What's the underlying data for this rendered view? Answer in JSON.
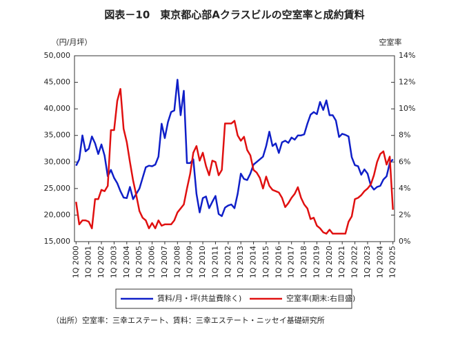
{
  "chart_data": {
    "type": "line",
    "title": "図表－10　東京都心部Aクラスビルの空室率と成約賃料",
    "y_label": "（円/月坪）",
    "y2_label": "空室率",
    "note": "（出所）空室率：三幸エステート、賃料：三幸エステート・ニッセイ基礎研究所",
    "categories": [
      "1Q 2000",
      null,
      null,
      null,
      "1Q 2001",
      null,
      null,
      null,
      "1Q 2002",
      null,
      null,
      null,
      "1Q 2003",
      null,
      null,
      null,
      "1Q 2004",
      null,
      null,
      null,
      "1Q 2005",
      null,
      null,
      null,
      "1Q 2006",
      null,
      null,
      null,
      "1Q 2007",
      null,
      null,
      null,
      "1Q 2008",
      null,
      null,
      null,
      "1Q 2009",
      null,
      null,
      null,
      "1Q 2010",
      null,
      null,
      null,
      "1Q 2011",
      null,
      null,
      null,
      "1Q 2012",
      null,
      null,
      null,
      "1Q 2013",
      null,
      null,
      null,
      "1Q 2014",
      null,
      null,
      null,
      "1Q 2015",
      null,
      null,
      null,
      "1Q 2016",
      null,
      null,
      null,
      "1Q 2017",
      null,
      null,
      null,
      "1Q 2018",
      null,
      null,
      null,
      "1Q 2019",
      null,
      null,
      null,
      "1Q 2020",
      null,
      null,
      null,
      "1Q 2021",
      null,
      null,
      null,
      "1Q 2022",
      null,
      null,
      null,
      "1Q 2023",
      null,
      null,
      null,
      "1Q 2024",
      null,
      null,
      null,
      "1Q 2025"
    ],
    "series": [
      {
        "name": "賃料/月・坪(共益費除く)",
        "color": "#0f1fc8",
        "axis": "y",
        "values": [
          29300,
          30500,
          35000,
          32000,
          32500,
          34800,
          33500,
          31500,
          33300,
          31200,
          27300,
          28500,
          27000,
          26000,
          24500,
          23300,
          23200,
          25300,
          23000,
          24000,
          25000,
          27000,
          29000,
          29300,
          29200,
          29500,
          31000,
          37200,
          34500,
          37500,
          39400,
          39700,
          45500,
          38800,
          43400,
          29800,
          29800,
          30500,
          24000,
          20500,
          23200,
          23500,
          21300,
          22500,
          23600,
          20200,
          19800,
          21400,
          21800,
          22000,
          21300,
          24000,
          27800,
          26800,
          26600,
          27800,
          29500,
          30000,
          30500,
          31000,
          33000,
          35700,
          33000,
          33500,
          31700,
          33700,
          34000,
          33600,
          34600,
          34200,
          35000,
          35000,
          35200,
          37200,
          38900,
          39400,
          39000,
          41300,
          39800,
          41600,
          38800,
          38800,
          37800,
          34700,
          35300,
          35100,
          34800,
          30900,
          29400,
          29200,
          27600,
          28600,
          27800,
          25600,
          24800,
          25300,
          25500,
          26700,
          27300,
          29800,
          30500
        ]
      },
      {
        "name": "空室率(期末:右目盛)",
        "color": "#e01010",
        "axis": "y2",
        "values": [
          3.0,
          1.3,
          1.6,
          1.6,
          1.5,
          1.0,
          3.2,
          3.2,
          3.9,
          3.8,
          4.2,
          8.4,
          8.4,
          10.6,
          11.5,
          8.5,
          7.5,
          6.0,
          4.6,
          3.5,
          2.3,
          1.8,
          1.6,
          1.0,
          1.4,
          1.0,
          1.6,
          1.2,
          1.3,
          1.3,
          1.3,
          1.6,
          2.2,
          2.5,
          2.8,
          4.0,
          5.1,
          6.7,
          7.2,
          6.1,
          6.7,
          5.7,
          5.0,
          6.1,
          6.0,
          5.0,
          5.4,
          8.9,
          8.9,
          8.9,
          9.1,
          8.0,
          7.6,
          7.9,
          6.9,
          6.5,
          5.4,
          5.2,
          4.8,
          4.0,
          4.9,
          4.2,
          3.9,
          3.8,
          3.7,
          3.3,
          2.6,
          2.9,
          3.3,
          3.6,
          4.1,
          3.3,
          2.8,
          2.5,
          1.7,
          1.8,
          1.2,
          1.0,
          0.7,
          0.6,
          0.9,
          0.6,
          0.6,
          0.6,
          0.6,
          0.6,
          1.5,
          1.9,
          3.2,
          3.3,
          3.5,
          3.8,
          4.0,
          4.3,
          5.0,
          6.0,
          6.6,
          6.8,
          5.8,
          6.4,
          2.4
        ]
      }
    ],
    "ylim": [
      15000,
      50000
    ],
    "yticks": [
      {
        "value": 15000,
        "label": "15,000"
      },
      {
        "value": 20000,
        "label": "20,000"
      },
      {
        "value": 25000,
        "label": "25,000"
      },
      {
        "value": 30000,
        "label": "30,000"
      },
      {
        "value": 35000,
        "label": "35,000"
      },
      {
        "value": 40000,
        "label": "40,000"
      },
      {
        "value": 45000,
        "label": "45,000"
      },
      {
        "value": 50000,
        "label": "50,000"
      }
    ],
    "y2lim": [
      0,
      14
    ],
    "y2ticks": [
      {
        "value": 0,
        "label": "0%"
      },
      {
        "value": 2,
        "label": "2%"
      },
      {
        "value": 4,
        "label": "4%"
      },
      {
        "value": 6,
        "label": "6%"
      },
      {
        "value": 8,
        "label": "8%"
      },
      {
        "value": 10,
        "label": "10%"
      },
      {
        "value": 12,
        "label": "12%"
      },
      {
        "value": 14,
        "label": "14%"
      }
    ],
    "legend": "bottom"
  }
}
